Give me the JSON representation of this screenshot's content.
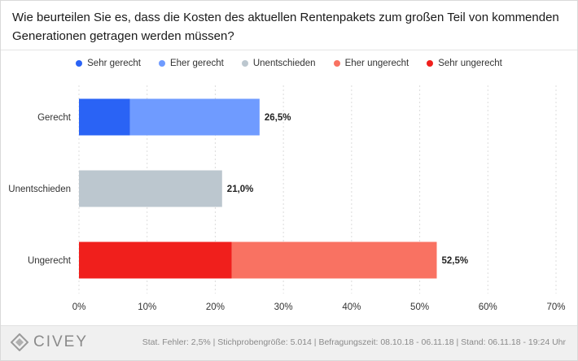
{
  "title": "Wie beurteilen Sie es, dass die Kosten des aktuellen Rentenpakets zum großen Teil von kommenden Generationen getragen werden müssen?",
  "legend": [
    {
      "label": "Sehr gerecht",
      "color": "#2a63f5"
    },
    {
      "label": "Eher gerecht",
      "color": "#6f9bff"
    },
    {
      "label": "Unentschieden",
      "color": "#bcc7cf"
    },
    {
      "label": "Eher ungerecht",
      "color": "#f97262"
    },
    {
      "label": "Sehr ungerecht",
      "color": "#f01f1c"
    }
  ],
  "chart_data": {
    "type": "bar",
    "orientation": "horizontal",
    "stacked": true,
    "categories": [
      "Gerecht",
      "Unentschieden",
      "Ungerecht"
    ],
    "series": [
      {
        "name": "Sehr gerecht",
        "color": "#2a63f5",
        "values": [
          7.5,
          0,
          0
        ]
      },
      {
        "name": "Eher gerecht",
        "color": "#6f9bff",
        "values": [
          19.0,
          0,
          0
        ]
      },
      {
        "name": "Unentschieden",
        "color": "#bcc7cf",
        "values": [
          0,
          21.0,
          0
        ]
      },
      {
        "name": "Sehr ungerecht",
        "color": "#f01f1c",
        "values": [
          0,
          0,
          22.4
        ]
      },
      {
        "name": "Eher ungerecht",
        "color": "#f97262",
        "values": [
          0,
          0,
          30.1
        ]
      }
    ],
    "totals": [
      "26,5%",
      "21,0%",
      "52,5%"
    ],
    "xlim": [
      0,
      70
    ],
    "xticks": [
      0,
      10,
      20,
      30,
      40,
      50,
      60,
      70
    ],
    "xtick_labels": [
      "0%",
      "10%",
      "20%",
      "30%",
      "40%",
      "50%",
      "60%",
      "70%"
    ],
    "grid": true,
    "legend_position": "top"
  },
  "footer": {
    "logo_text": "CIVEY",
    "info": "Stat. Fehler: 2,5% | Stichprobengröße: 5.014 | Befragungszeit: 08.10.18 - 06.11.18 | Stand: 06.11.18 - 19:24 Uhr"
  }
}
